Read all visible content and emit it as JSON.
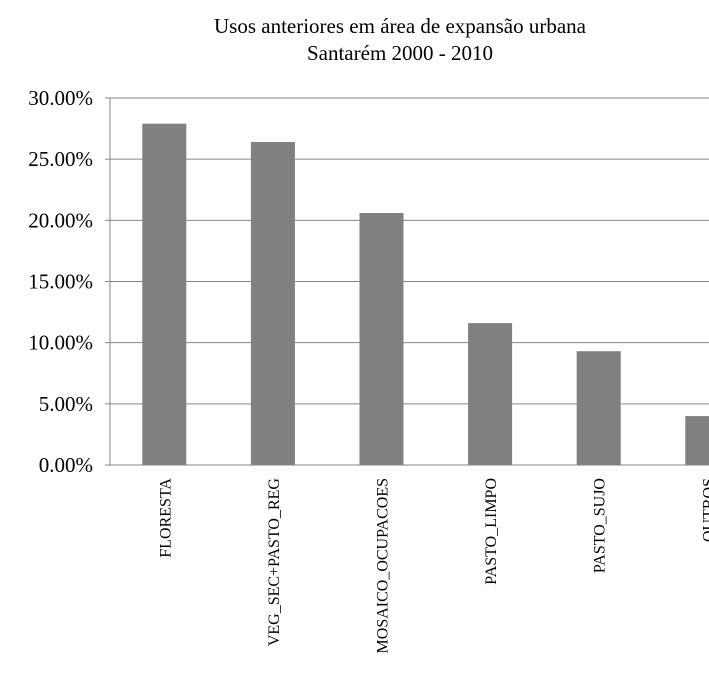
{
  "chart_data": {
    "type": "bar",
    "title": "Usos anteriores em área de expansão urbana",
    "subtitle": "Santarém 2000 - 2010",
    "categories": [
      "FLORESTA",
      "VEG_SEC+PASTO_REG",
      "MOSAICO_OCUPACOES",
      "PASTO_LIMPO",
      "PASTO_SUJO",
      "OUTROS"
    ],
    "values": [
      27.9,
      26.4,
      20.6,
      11.6,
      9.3,
      4.0
    ],
    "y_ticks": [
      "0.00%",
      "5.00%",
      "10.00%",
      "15.00%",
      "20.00%",
      "25.00%",
      "30.00%"
    ],
    "ylim": [
      0,
      30
    ],
    "xlabel": "",
    "ylabel": "",
    "grid": true,
    "legend": "none",
    "bar_color": "#808080",
    "grid_color": "#868686"
  }
}
